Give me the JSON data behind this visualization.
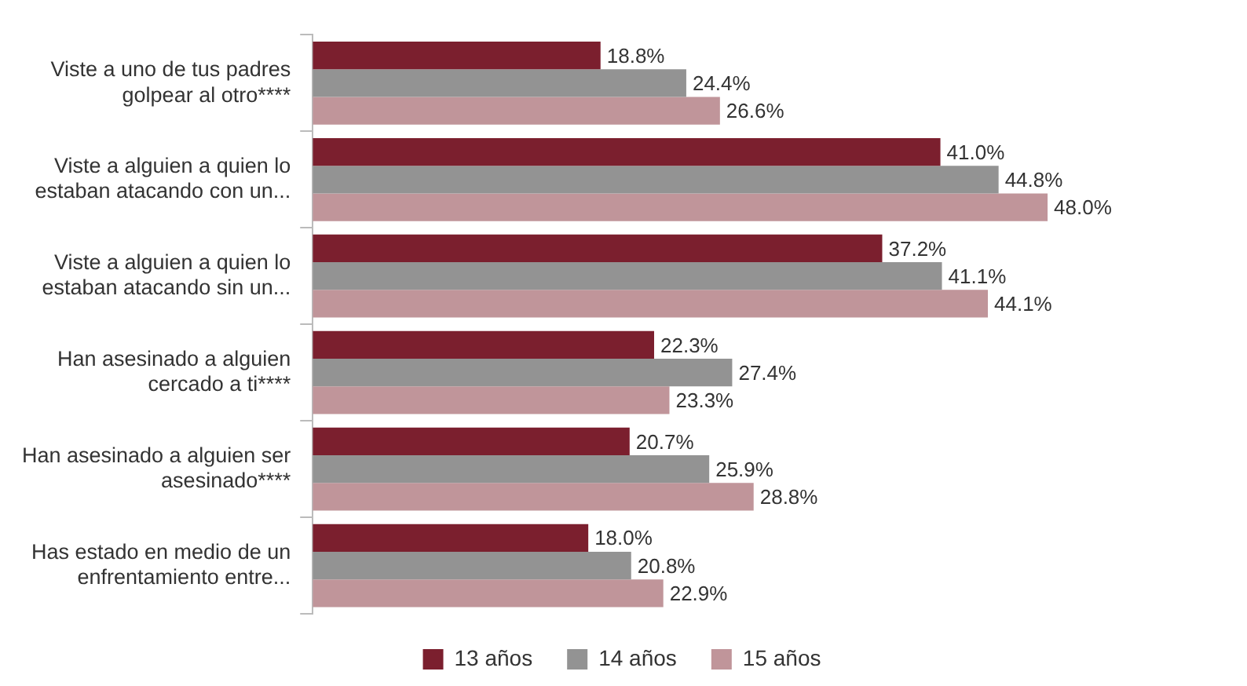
{
  "chart_data": {
    "type": "bar",
    "orientation": "horizontal",
    "categories": [
      "Viste a uno de tus padres golpear al otro****",
      "Viste a alguien a quien lo estaban atacando con un...",
      "Viste a alguien a quien lo estaban atacando sin un...",
      "Han asesinado a alguien cercado a ti****",
      "Han asesinado a alguien ser asesinado****",
      "Has estado en medio de un enfrentamiento entre..."
    ],
    "series": [
      {
        "name": "13 años",
        "color": "#7b1f2e",
        "values": [
          18.8,
          41.0,
          37.2,
          22.3,
          20.7,
          18.0
        ],
        "value_labels": [
          "18.8%",
          "41.0%",
          "37.2%",
          "22.3%",
          "20.7%",
          "18.0%"
        ]
      },
      {
        "name": "14 años",
        "color": "#939393",
        "values": [
          24.4,
          44.8,
          41.1,
          27.4,
          25.9,
          20.8
        ],
        "value_labels": [
          "24.4%",
          "44.8%",
          "41.1%",
          "27.4%",
          "25.9%",
          "20.8%"
        ]
      },
      {
        "name": "15 años",
        "color": "#c0959a",
        "values": [
          26.6,
          48.0,
          44.1,
          23.3,
          28.8,
          22.9
        ],
        "value_labels": [
          "26.6%",
          "48.0%",
          "44.1%",
          "23.3%",
          "28.8%",
          "22.9%"
        ]
      }
    ],
    "legend": "bottom",
    "grid": false,
    "tick_labels": "y"
  }
}
